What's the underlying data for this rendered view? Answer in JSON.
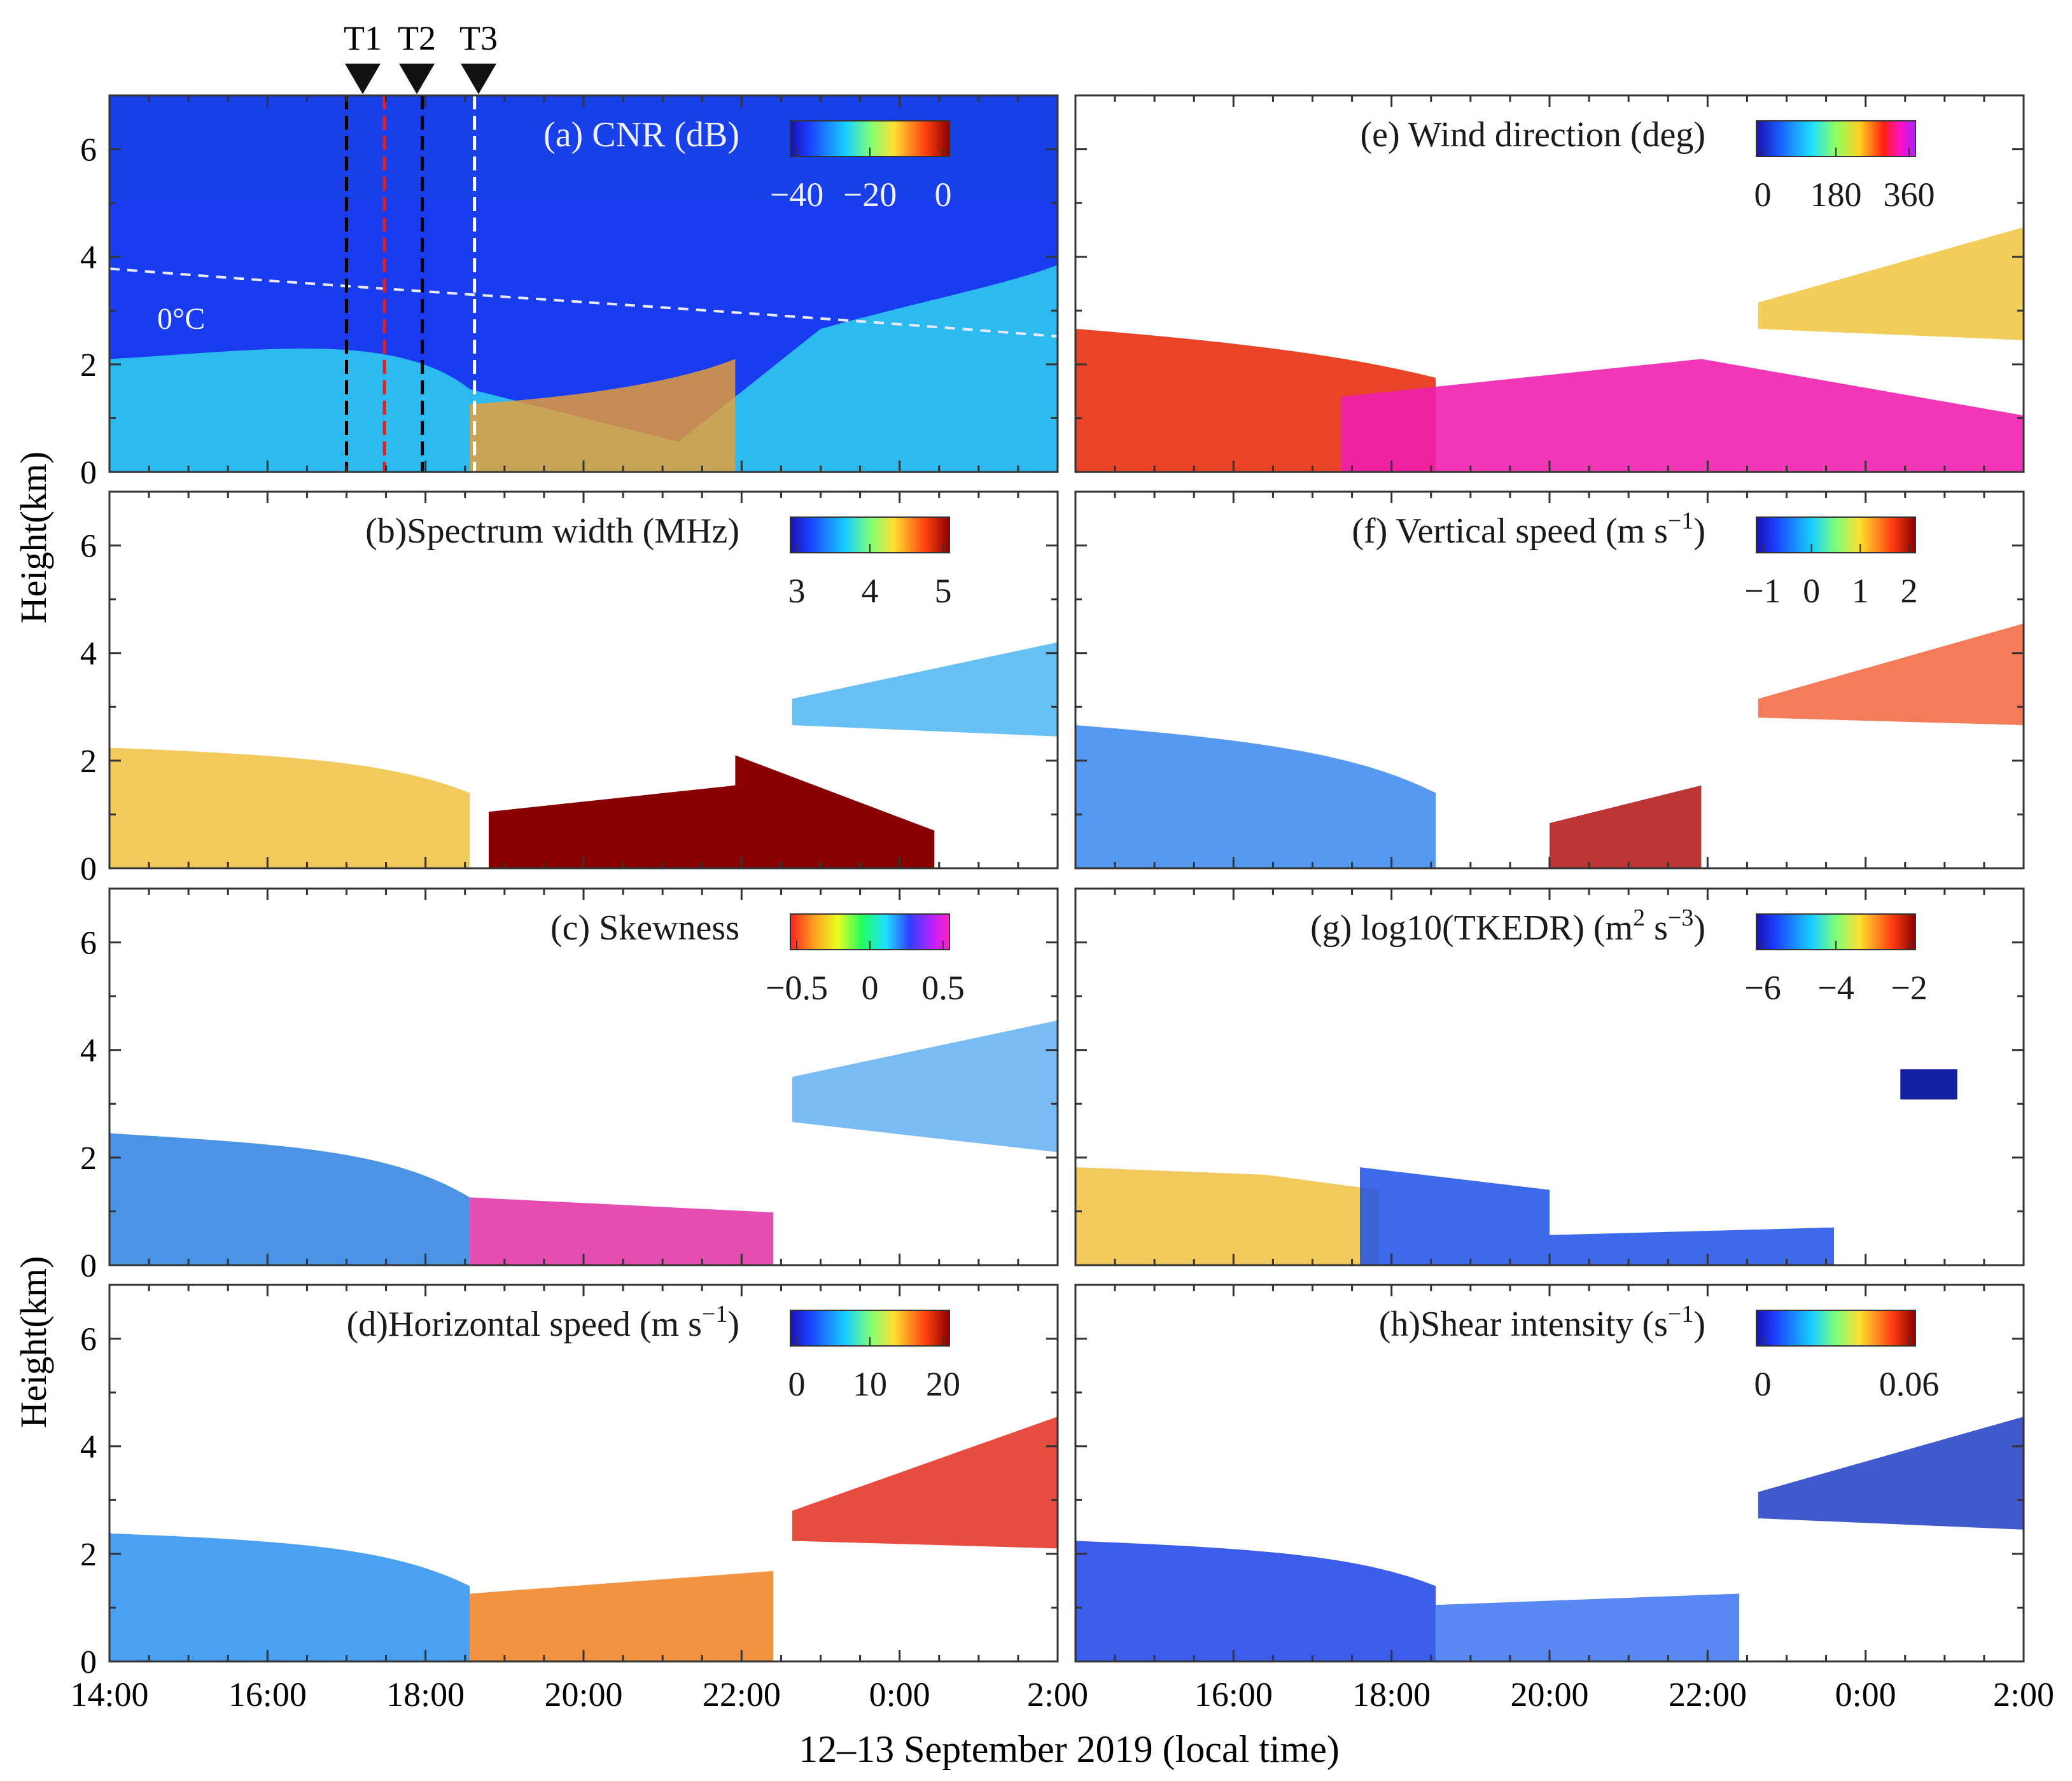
{
  "figure": {
    "xlabel": "12–13 September 2019 (local time)",
    "ylabel": "Height(km)",
    "x_ticks": [
      "14:00",
      "16:00",
      "18:00",
      "20:00",
      "22:00",
      "0:00",
      "2:00"
    ],
    "y_ticks": [
      "0",
      "2",
      "4",
      "6"
    ],
    "markers": [
      "T1",
      "T2",
      "T3"
    ],
    "isotherm_label": "0°C"
  },
  "chart_data": [
    {
      "id": "a",
      "type": "heatmap",
      "title": "(a) CNR (dB)",
      "colormap": "jet",
      "cbar_ticks": [
        "−40",
        "−20",
        "0"
      ],
      "cbar_values": [
        -40,
        -20,
        0
      ],
      "x_range_hours": [
        14,
        26
      ],
      "ylim": [
        0,
        7
      ]
    },
    {
      "id": "b",
      "type": "heatmap",
      "title": "(b)Spectrum width (MHz)",
      "colormap": "jet",
      "cbar_ticks": [
        "3",
        "4",
        "5"
      ],
      "cbar_values": [
        3,
        4,
        5
      ],
      "x_range_hours": [
        14,
        26
      ],
      "ylim": [
        0,
        7
      ]
    },
    {
      "id": "c",
      "type": "heatmap",
      "title": "(c) Skewness",
      "colormap": "hsv",
      "cbar_ticks": [
        "−0.5",
        "0",
        "0.5"
      ],
      "cbar_values": [
        -0.5,
        0,
        0.5
      ],
      "x_range_hours": [
        14,
        26
      ],
      "ylim": [
        0,
        7
      ]
    },
    {
      "id": "d",
      "type": "heatmap",
      "title": "(d)Horizontal speed (m s",
      "title_sup": "−1",
      "title_end": ")",
      "colormap": "jet",
      "cbar_ticks": [
        "0",
        "10",
        "20"
      ],
      "cbar_values": [
        0,
        10,
        20
      ],
      "x_range_hours": [
        14,
        26
      ],
      "ylim": [
        0,
        7
      ]
    },
    {
      "id": "e",
      "type": "heatmap",
      "title": "(e) Wind direction (deg)",
      "colormap": "jet-magenta",
      "cbar_ticks": [
        "0",
        "180",
        "360"
      ],
      "cbar_values": [
        0,
        180,
        360
      ],
      "x_range_hours": [
        14,
        26
      ],
      "ylim": [
        0,
        7
      ]
    },
    {
      "id": "f",
      "type": "heatmap",
      "title": "(f) Vertical speed (m s",
      "title_sup": "−1",
      "title_end": ")",
      "colormap": "jet",
      "cbar_ticks": [
        "−1",
        "0",
        "1",
        "2"
      ],
      "cbar_values": [
        -1,
        0,
        1,
        2
      ],
      "x_range_hours": [
        14,
        26
      ],
      "ylim": [
        0,
        7
      ]
    },
    {
      "id": "g",
      "type": "heatmap",
      "title": "(g) log10(TKEDR) (m",
      "title_sup": "2",
      "title_mid": " s",
      "title_sup2": "−3",
      "title_end": ")",
      "colormap": "jet",
      "cbar_ticks": [
        "−6",
        "−4",
        "−2"
      ],
      "cbar_values": [
        -6,
        -4,
        -2
      ],
      "x_range_hours": [
        14,
        26
      ],
      "ylim": [
        0,
        7
      ]
    },
    {
      "id": "h",
      "type": "heatmap",
      "title": "(h)Shear intensity (s",
      "title_sup": "−1",
      "title_end": ")",
      "colormap": "jet",
      "cbar_ticks": [
        "0",
        "0.06"
      ],
      "cbar_values": [
        0,
        0.06
      ],
      "x_range_hours": [
        14,
        26
      ],
      "ylim": [
        0,
        7
      ]
    }
  ]
}
